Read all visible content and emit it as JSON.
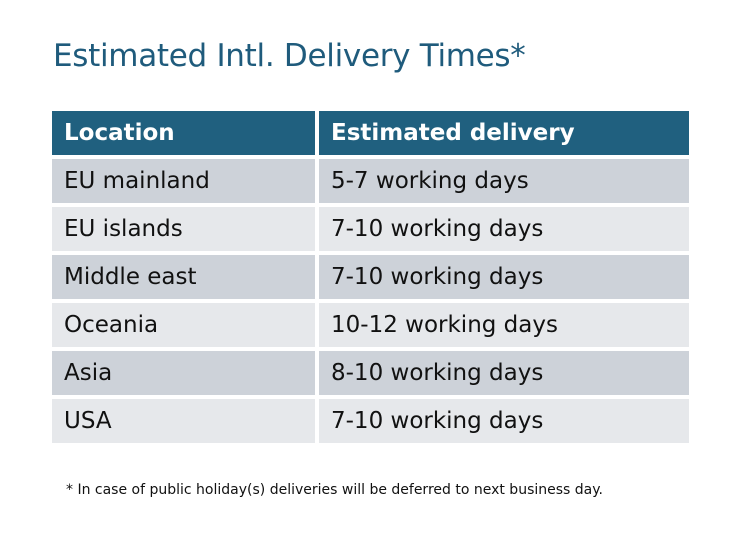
{
  "title": "Estimated Intl. Delivery Times*",
  "table": {
    "headers": [
      "Location",
      "Estimated delivery"
    ],
    "rows": [
      [
        "EU mainland",
        "5-7 working days"
      ],
      [
        "EU islands",
        "7-10 working days"
      ],
      [
        "Middle east",
        "7-10 working days"
      ],
      [
        "Oceania",
        "10-12 working days"
      ],
      [
        "Asia",
        "8-10 working days"
      ],
      [
        "USA",
        "7-10 working days"
      ]
    ]
  },
  "footnote": "* In case of public holiday(s) deliveries will be deferred to next business day.",
  "colors": {
    "header": "#20607f",
    "title": "#1f5b7c",
    "row_dark": "#cdd2d9",
    "row_light": "#e6e8eb"
  }
}
